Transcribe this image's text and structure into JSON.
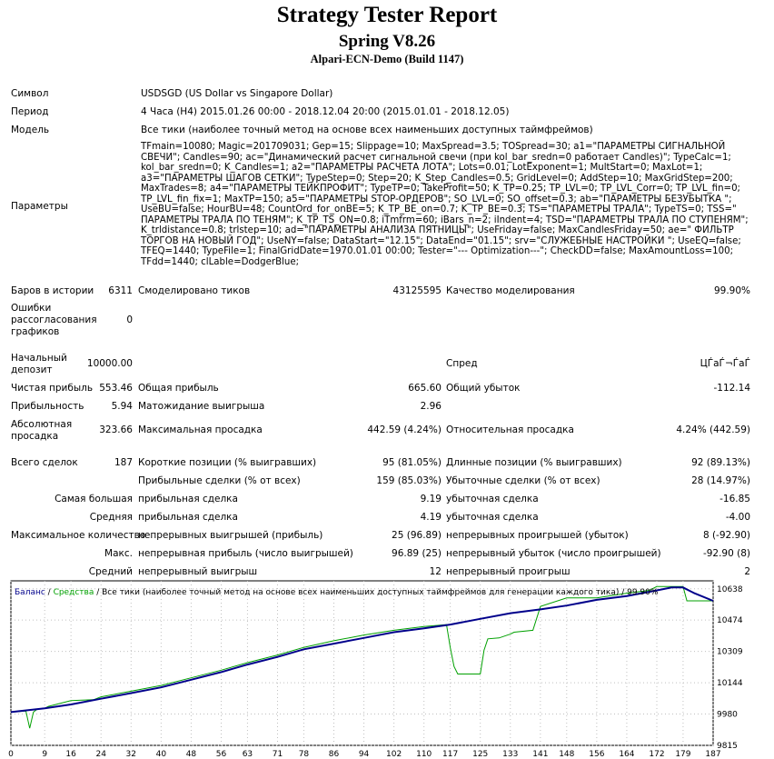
{
  "header": {
    "title": "Strategy Tester Report",
    "expert": "Spring V8.26",
    "server": "Alpari-ECN-Demo (Build 1147)"
  },
  "info": [
    {
      "label": "Символ",
      "value": "USDSGD (US Dollar vs Singapore Dollar)"
    },
    {
      "label": "Период",
      "value": "4 Часа (H4) 2015.01.26 00:00 - 2018.12.04 20:00 (2015.01.01 - 2018.12.05)"
    },
    {
      "label": "Модель",
      "value": "Все тики (наиболее точный метод на основе всех наименьших доступных таймфреймов)"
    },
    {
      "label": "Параметры",
      "value": "TFmain=10080; Magic=201709031; Gep=15; Slippage=10; MaxSpread=3.5; TOSpread=30; a1=\"ПАРАМЕТРЫ СИГНАЛЬНОЙ СВЕЧИ\"; Candles=90; ac=\"Динамический расчет сигнальной свечи (при kol_bar_sredn=0 работает Candles)\"; TypeCalc=1; kol_bar_sredn=0; K_Candles=1; a2=\"ПАРАМЕТРЫ РАСЧЕТА ЛОТА\"; Lots=0.01; LotExponent=1; MultStart=0; MaxLot=1; a3=\"ПАРАМЕТРЫ ШАГОВ СЕТКИ\"; TypeStep=0; Step=20; K_Step_Candles=0.5; GridLevel=0; AddStep=10; MaxGridStep=200; MaxTrades=8; a4=\"ПАРАМЕТРЫ ТЕЙКПРОФИТ\"; TypeTP=0; TakeProfit=50; K_TP=0.25; TP_LVL=0; TP_LVL_Corr=0; TP_LVL_fin=0; TP_LVL_fin_fix=1; MaxTP=150; a5=\"ПАРАМЕТРЫ STOP-ОРДЕРОВ\"; SO_LVL=0; SO_offset=0.3; ab=\"ПАРАМЕТРЫ БЕЗУБЫТКА \"; UseBU=false; HourBU=48; CountOrd_for_onBE=5; K_TP_BE_on=0.7; K_TP_BE=0.3; TS=\"ПАРАМЕТРЫ ТРАЛА\"; TypeTS=0; TSS=\" ПАРАМЕТРЫ ТРАЛА ПО ТЕНЯМ\"; K_TP_TS_ON=0.8; iTmfrm=60; iBars_n=2; iIndent=4; TSD=\"ПАРАМЕТРЫ ТРАЛА ПО СТУПЕНЯМ\"; K_trldistance=0.8; trlstep=10; ad=\"ПАРАМЕТРЫ АНАЛИЗА ПЯТНИЦЫ\"; UseFriday=false; MaxCandlesFriday=50; ae=\" ФИЛЬТР ТОРГОВ НА НОВЫЙ ГОД\"; UseNY=false; DataStart=\"12.15\"; DataEnd=\"01.15\"; srv=\"СЛУЖЕБНЫЕ НАСТРОЙКИ \"; UseEQ=false; TFEQ=1440; TypeFile=1; FinalGridDate=1970.01.01 00:00; Tester=\"--- Optimization---\"; CheckDD=false; MaxAmountLoss=100; TFdd=1440; clLable=DodgerBlue;"
    }
  ],
  "stats": {
    "bars_label": "Баров в истории",
    "bars": "6311",
    "ticks_label": "Смоделировано тиков",
    "ticks": "43125595",
    "quality_label": "Качество моделирования",
    "quality": "99.90%",
    "mismatch_label": "Ошибки рассогласования графиков",
    "mismatch": "0",
    "deposit_label": "Начальный депозит",
    "deposit": "10000.00",
    "spread_label": "Спред",
    "spread": "ЦЃаЃ¬ЃаЃ",
    "net_label": "Чистая прибыль",
    "net": "553.46",
    "gross_profit_label": "Общая прибыль",
    "gross_profit": "665.60",
    "gross_loss_label": "Общий убыток",
    "gross_loss": "-112.14",
    "pf_label": "Прибыльность",
    "pf": "5.94",
    "payoff_label": "Матожидание выигрыша",
    "payoff": "2.96",
    "abs_dd_label": "Абсолютная просадка",
    "abs_dd": "323.66",
    "max_dd_label": "Максимальная просадка",
    "max_dd": "442.59 (4.24%)",
    "rel_dd_label": "Относительная просадка",
    "rel_dd": "4.24% (442.59)",
    "trades_label": "Всего сделок",
    "trades": "187",
    "short_label": "Короткие позиции (% выигравших)",
    "short": "95 (81.05%)",
    "long_label": "Длинные позиции (% выигравших)",
    "long": "92 (89.13%)",
    "profit_trades_label": "Прибыльные сделки (% от всех)",
    "profit_trades": "159 (85.03%)",
    "loss_trades_label": "Убыточные сделки (% от всех)",
    "loss_trades": "28 (14.97%)",
    "largest_label": "Самая большая",
    "largest_profit_label": "прибыльная сделка",
    "largest_profit": "9.19",
    "largest_loss_label": "убыточная сделка",
    "largest_loss": "-16.85",
    "average_label": "Средняя",
    "average_profit_label": "прибыльная сделка",
    "average_profit": "4.19",
    "average_loss_label": "убыточная сделка",
    "average_loss": "-4.00",
    "max_count_label": "Максимальное количество",
    "max_cons_wins_label": "непрерывных выигрышей (прибыль)",
    "max_cons_wins": "25 (96.89)",
    "max_cons_losses_label": "непрерывных проигрышей (убыток)",
    "max_cons_losses": "8 (-92.90)",
    "max_label": "Макс.",
    "max_cons_profit_label": "непрерывная прибыль (число выигрышей)",
    "max_cons_profit": "96.89 (25)",
    "max_cons_loss_label": "непрерывный убыток (число проигрышей)",
    "max_cons_loss": "-92.90 (8)",
    "avg_label": "Средний",
    "avg_cons_wins_label": "непрерывный выигрыш",
    "avg_cons_wins": "12",
    "avg_cons_losses_label": "непрерывный проигрыш",
    "avg_cons_losses": "2"
  },
  "chart_data": {
    "type": "line",
    "legend_balance": "Баланс",
    "legend_equity": "Средства",
    "legend_rest": " / Все тики (наиболее точный метод на основе всех наименьших доступных таймфреймов для генерации каждого тика) / 99.90%",
    "x_ticks": [
      "0",
      "9",
      "16",
      "24",
      "32",
      "40",
      "48",
      "56",
      "63",
      "71",
      "78",
      "86",
      "94",
      "102",
      "110",
      "117",
      "125",
      "133",
      "141",
      "148",
      "156",
      "164",
      "172",
      "179",
      "187"
    ],
    "y_ticks": [
      "10638",
      "10474",
      "10309",
      "10144",
      "9980",
      "9815"
    ],
    "y_tick_values": [
      10638,
      10474,
      10309,
      10144,
      9980,
      9815
    ],
    "ylim": [
      9815,
      10680
    ],
    "xlim": [
      0,
      187
    ],
    "colors": {
      "balance": "#00008b",
      "equity": "#00a000",
      "grid": "#c0c0c0"
    },
    "series": [
      {
        "name": "Баланс",
        "x": [
          0,
          9,
          16,
          24,
          32,
          40,
          48,
          56,
          63,
          71,
          78,
          86,
          94,
          102,
          110,
          117,
          125,
          133,
          141,
          148,
          156,
          164,
          172,
          176,
          179,
          182,
          187
        ],
        "y": [
          9990,
          10010,
          10030,
          10060,
          10090,
          10120,
          10160,
          10200,
          10240,
          10280,
          10320,
          10350,
          10380,
          10410,
          10430,
          10450,
          10480,
          10510,
          10530,
          10550,
          10580,
          10600,
          10630,
          10645,
          10645,
          10615,
          10575
        ]
      },
      {
        "name": "Средства",
        "x": [
          0,
          4,
          5,
          6,
          7,
          9,
          10,
          16,
          22,
          24,
          32,
          40,
          48,
          56,
          63,
          71,
          78,
          86,
          94,
          102,
          110,
          116,
          117,
          118,
          119,
          125,
          126,
          127,
          130,
          133,
          134,
          139,
          141,
          148,
          156,
          164,
          170,
          172,
          176,
          179,
          180,
          181,
          187
        ],
        "y": [
          9990,
          9995,
          9905,
          9990,
          10005,
          10010,
          10020,
          10050,
          10055,
          10070,
          10100,
          10130,
          10170,
          10210,
          10250,
          10290,
          10330,
          10365,
          10395,
          10420,
          10440,
          10450,
          10330,
          10230,
          10190,
          10190,
          10315,
          10375,
          10380,
          10400,
          10410,
          10420,
          10545,
          10590,
          10590,
          10615,
          10630,
          10650,
          10650,
          10650,
          10575,
          10575,
          10575
        ]
      }
    ]
  }
}
